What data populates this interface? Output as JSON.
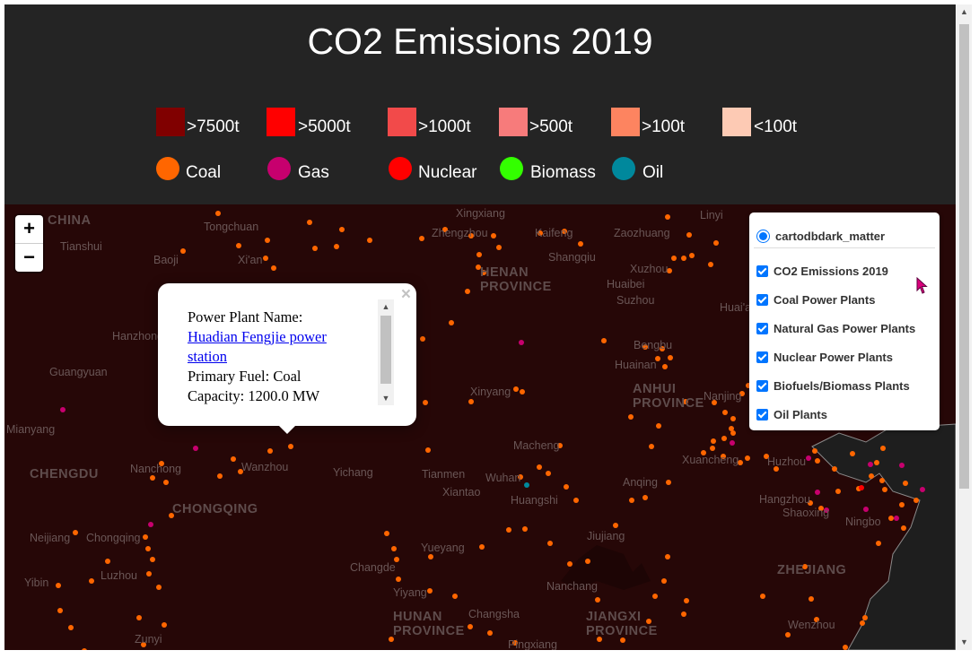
{
  "title": "CO2 Emissions 2019",
  "emission_legend": [
    {
      "label": ">7500t",
      "color": "#800000"
    },
    {
      "label": ">5000t",
      "color": "#ff0000"
    },
    {
      "label": ">1000t",
      "color": "#f24a4a"
    },
    {
      "label": ">500t",
      "color": "#f77b7b"
    },
    {
      "label": ">100t",
      "color": "#fd8460"
    },
    {
      "label": "<100t",
      "color": "#fdcab4"
    }
  ],
  "fuel_legend": [
    {
      "label": "Coal",
      "color": "#ff6600"
    },
    {
      "label": "Gas",
      "color": "#c7006e"
    },
    {
      "label": "Nuclear",
      "color": "#ff0000"
    },
    {
      "label": "Biomass",
      "color": "#33ff00"
    },
    {
      "label": "Oil",
      "color": "#00889c"
    }
  ],
  "zoom": {
    "in": "+",
    "out": "−"
  },
  "layers": {
    "base": "cartodbdark_matter",
    "overlays": [
      "CO2 Emissions 2019",
      "Coal Power Plants",
      "Natural Gas Power Plants",
      "Nuclear Power Plants",
      "Biofuels/Biomass Plants",
      "Oil Plants"
    ]
  },
  "popup": {
    "name_label": "Power Plant Name:",
    "name": "Huadian Fengjie power station",
    "fuel_line": "Primary Fuel: Coal",
    "capacity_line": "Capacity: 1200.0 MW",
    "close": "×"
  },
  "map_labels": [
    {
      "text": "CHINA",
      "big": true
    },
    {
      "text": "Tongchuan"
    },
    {
      "text": "Tianshui"
    },
    {
      "text": "Baoji"
    },
    {
      "text": "Xi'an"
    },
    {
      "text": "Zhengzhou"
    },
    {
      "text": "Kaifeng"
    },
    {
      "text": "Zaozhuang"
    },
    {
      "text": "Linyi"
    },
    {
      "text": "HENAN PROVINCE",
      "big": true
    },
    {
      "text": "Shangqiu"
    },
    {
      "text": "Xuzhou"
    },
    {
      "text": "Huaibei"
    },
    {
      "text": "Suzhou"
    },
    {
      "text": "Huai'an"
    },
    {
      "text": "Hanzhong"
    },
    {
      "text": "Guangyuan"
    },
    {
      "text": "Bengbu"
    },
    {
      "text": "Huainan"
    },
    {
      "text": "Xinyang"
    },
    {
      "text": "ANHUI PROVINCE",
      "big": true
    },
    {
      "text": "Nanjing"
    },
    {
      "text": "Mianyang"
    },
    {
      "text": "Macheng"
    },
    {
      "text": "CHENGDU",
      "big": true
    },
    {
      "text": "Nanchong"
    },
    {
      "text": "Wanzhou"
    },
    {
      "text": "Yichang"
    },
    {
      "text": "Tianmen"
    },
    {
      "text": "Wuhan"
    },
    {
      "text": "Xiantao"
    },
    {
      "text": "Xuancheng"
    },
    {
      "text": "Huzhou"
    },
    {
      "text": "Anqing"
    },
    {
      "text": "Huangshi"
    },
    {
      "text": "CHONGQING",
      "big": true
    },
    {
      "text": "Hangzhou"
    },
    {
      "text": "Shaoxing"
    },
    {
      "text": "Ningbo"
    },
    {
      "text": "Neijiang"
    },
    {
      "text": "Chongqing"
    },
    {
      "text": "Jiujiang"
    },
    {
      "text": "Luzhou"
    },
    {
      "text": "Yueyang"
    },
    {
      "text": "Changde"
    },
    {
      "text": "ZHEJIANG",
      "big": true
    },
    {
      "text": "Yibin"
    },
    {
      "text": "Nanchang"
    },
    {
      "text": "Yiyang"
    },
    {
      "text": "HUNAN PROVINCE",
      "big": true
    },
    {
      "text": "Changsha"
    },
    {
      "text": "JIANGXI PROVINCE",
      "big": true
    },
    {
      "text": "Wenzhou"
    },
    {
      "text": "Zunyi"
    },
    {
      "text": "Xingxiang"
    },
    {
      "text": "Pingxiang"
    }
  ]
}
